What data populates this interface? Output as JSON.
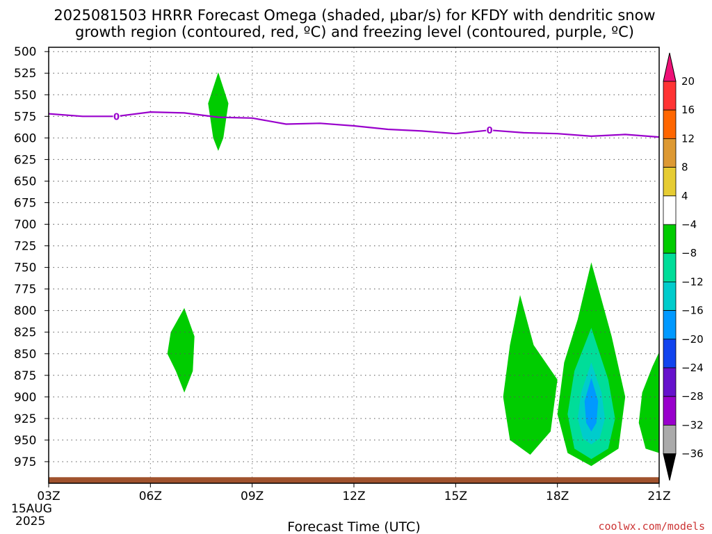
{
  "chart_data": {
    "type": "time-height",
    "title_line1": "2025081503 HRRR Forecast Omega (shaded, μbar/s) for KFDY with dendritic snow",
    "title_line2": "growth region (contoured, red, ºC) and freezing level (contoured, purple, ºC)",
    "xlabel": "Forecast Time (UTC)",
    "x_ticks": [
      "03Z",
      "06Z",
      "09Z",
      "12Z",
      "15Z",
      "18Z",
      "21Z"
    ],
    "x_start_date_line1": "15AUG",
    "x_start_date_line2": "2025",
    "x_range_hours": [
      3,
      21
    ],
    "y_ticks": [
      500,
      525,
      550,
      575,
      600,
      625,
      650,
      675,
      700,
      725,
      750,
      775,
      800,
      825,
      850,
      875,
      900,
      925,
      950,
      975
    ],
    "y_range_hPa": [
      495,
      1000
    ],
    "grid": true,
    "credit": "coolwx.com/models",
    "freezing_level": {
      "label": "0",
      "color": "#9900cc",
      "time_hours": [
        3,
        4,
        5,
        6,
        7,
        8,
        9,
        10,
        11,
        12,
        13,
        14,
        15,
        16,
        17,
        18,
        19,
        20,
        21
      ],
      "pressure_hPa": [
        572,
        575,
        575,
        570,
        571,
        576,
        577,
        584,
        583,
        586,
        590,
        592,
        595,
        591,
        594,
        595,
        598,
        596,
        599
      ],
      "label_time_hours": [
        5,
        16
      ]
    },
    "surface_band": {
      "color": "#a0522d",
      "pressure_top_hPa": 993
    },
    "omega_areas": [
      {
        "level": -4,
        "color": "#00cc00",
        "points": [
          [
            8.0,
            524
          ],
          [
            8.3,
            560
          ],
          [
            8.15,
            600
          ],
          [
            8.0,
            615
          ],
          [
            7.85,
            600
          ],
          [
            7.7,
            560
          ]
        ]
      },
      {
        "level": -4,
        "color": "#00cc00",
        "points": [
          [
            7.0,
            797
          ],
          [
            7.3,
            830
          ],
          [
            7.25,
            870
          ],
          [
            7.0,
            895
          ],
          [
            6.75,
            870
          ],
          [
            6.5,
            850
          ],
          [
            6.6,
            825
          ]
        ]
      },
      {
        "level": -4,
        "color": "#00cc00",
        "points": [
          [
            16.9,
            782
          ],
          [
            17.3,
            840
          ],
          [
            18.0,
            880
          ],
          [
            17.8,
            940
          ],
          [
            17.2,
            967
          ],
          [
            16.6,
            950
          ],
          [
            16.4,
            900
          ],
          [
            16.6,
            840
          ]
        ]
      },
      {
        "level": -4,
        "color": "#00cc00",
        "points": [
          [
            19.0,
            744
          ],
          [
            19.6,
            830
          ],
          [
            20.0,
            900
          ],
          [
            19.8,
            960
          ],
          [
            19.0,
            980
          ],
          [
            18.3,
            965
          ],
          [
            18.0,
            920
          ],
          [
            18.2,
            860
          ],
          [
            18.6,
            810
          ]
        ]
      },
      {
        "level": -4,
        "color": "#00cc00",
        "points": [
          [
            21.0,
            848
          ],
          [
            21.0,
            965
          ],
          [
            20.6,
            960
          ],
          [
            20.4,
            930
          ],
          [
            20.5,
            895
          ],
          [
            20.8,
            865
          ]
        ]
      },
      {
        "level": -8,
        "color": "#00dd99",
        "points": [
          [
            19.0,
            820
          ],
          [
            19.5,
            880
          ],
          [
            19.7,
            925
          ],
          [
            19.5,
            960
          ],
          [
            19.0,
            972
          ],
          [
            18.5,
            960
          ],
          [
            18.3,
            920
          ],
          [
            18.5,
            870
          ]
        ]
      },
      {
        "level": -12,
        "color": "#00cccc",
        "points": [
          [
            19.0,
            860
          ],
          [
            19.3,
            895
          ],
          [
            19.4,
            925
          ],
          [
            19.25,
            948
          ],
          [
            19.0,
            955
          ],
          [
            18.75,
            948
          ],
          [
            18.6,
            925
          ],
          [
            18.7,
            895
          ]
        ]
      },
      {
        "level": -16,
        "color": "#0099ff",
        "points": [
          [
            19.0,
            878
          ],
          [
            19.2,
            905
          ],
          [
            19.15,
            930
          ],
          [
            19.0,
            940
          ],
          [
            18.85,
            930
          ],
          [
            18.8,
            905
          ]
        ]
      }
    ],
    "colorbar": {
      "ticks": [
        "20",
        "16",
        "12",
        "8",
        "4",
        "−4",
        "−8",
        "−12",
        "−16",
        "−20",
        "−24",
        "−28",
        "−32",
        "−36"
      ],
      "colors": [
        "#ff3333",
        "#ff6600",
        "#dd9933",
        "#e6cc33",
        "#ffffff",
        "#00cc00",
        "#00dd99",
        "#00cccc",
        "#0099ff",
        "#1144ee",
        "#6611cc",
        "#9900cc",
        "#aaaaaa"
      ],
      "top_arrow_color": "#ee1177",
      "bottom_arrow_color": "#000000"
    }
  }
}
